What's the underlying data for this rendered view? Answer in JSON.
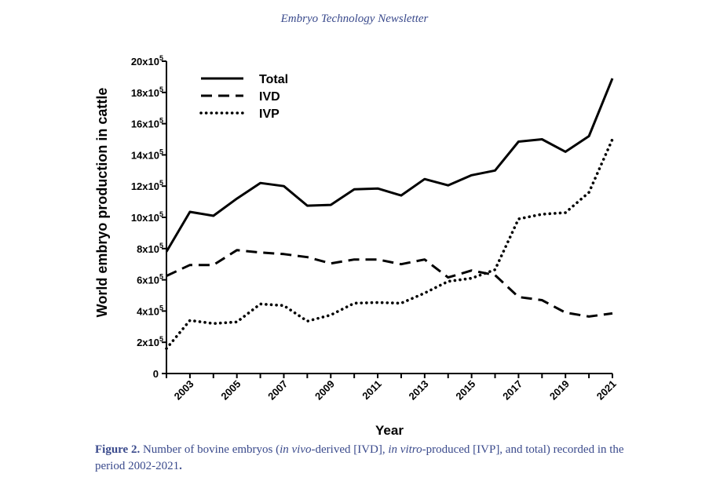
{
  "header": {
    "title": "Embryo Technology Newsletter"
  },
  "caption": {
    "label": "Figure 2.",
    "part1": " Number of bovine embryos (",
    "italic1": "in vivo",
    "part2": "-derived [IVD], ",
    "italic2": "in vitro",
    "part3": "-produced [IVP], and total) recorded in the period 2002-2021",
    "end": "."
  },
  "chart_data": {
    "type": "line",
    "xlabel": "Year",
    "ylabel": "World embryo production in cattle",
    "xlim": [
      2002,
      2021
    ],
    "ylim": [
      0,
      2000000
    ],
    "x_tick_labels": [
      "2003",
      "2005",
      "2007",
      "2009",
      "2011",
      "2013",
      "2015",
      "2017",
      "2019",
      "2021"
    ],
    "y_ticks": [
      {
        "value": 0,
        "base": "0",
        "exp": ""
      },
      {
        "value": 200000,
        "base": "2x10",
        "exp": "5"
      },
      {
        "value": 400000,
        "base": "4x10",
        "exp": "5"
      },
      {
        "value": 600000,
        "base": "6x10",
        "exp": "5"
      },
      {
        "value": 800000,
        "base": "8x10",
        "exp": "5"
      },
      {
        "value": 1000000,
        "base": "10x10",
        "exp": "5"
      },
      {
        "value": 1200000,
        "base": "12x10",
        "exp": "5"
      },
      {
        "value": 1400000,
        "base": "14x10",
        "exp": "5"
      },
      {
        "value": 1600000,
        "base": "16x10",
        "exp": "5"
      },
      {
        "value": 1800000,
        "base": "18x10",
        "exp": "5"
      },
      {
        "value": 2000000,
        "base": "20x10",
        "exp": "5"
      }
    ],
    "legend_position": "top-left",
    "x": [
      2002,
      2003,
      2004,
      2005,
      2006,
      2007,
      2008,
      2009,
      2010,
      2011,
      2012,
      2013,
      2014,
      2015,
      2016,
      2017,
      2018,
      2019,
      2020,
      2021
    ],
    "series": [
      {
        "name": "Total",
        "style": "solid",
        "values": [
          780000,
          1035000,
          1010000,
          1120000,
          1220000,
          1200000,
          1075000,
          1080000,
          1180000,
          1185000,
          1140000,
          1245000,
          1205000,
          1270000,
          1300000,
          1485000,
          1500000,
          1420000,
          1520000,
          1890000
        ]
      },
      {
        "name": "IVD",
        "style": "dashed",
        "values": [
          625000,
          695000,
          695000,
          790000,
          775000,
          765000,
          745000,
          705000,
          730000,
          730000,
          700000,
          730000,
          615000,
          660000,
          630000,
          490000,
          470000,
          390000,
          365000,
          385000
        ]
      },
      {
        "name": "IVP",
        "style": "dotted",
        "values": [
          160000,
          340000,
          320000,
          330000,
          445000,
          435000,
          335000,
          375000,
          450000,
          455000,
          450000,
          515000,
          590000,
          610000,
          665000,
          990000,
          1020000,
          1030000,
          1160000,
          1500000
        ]
      }
    ]
  }
}
